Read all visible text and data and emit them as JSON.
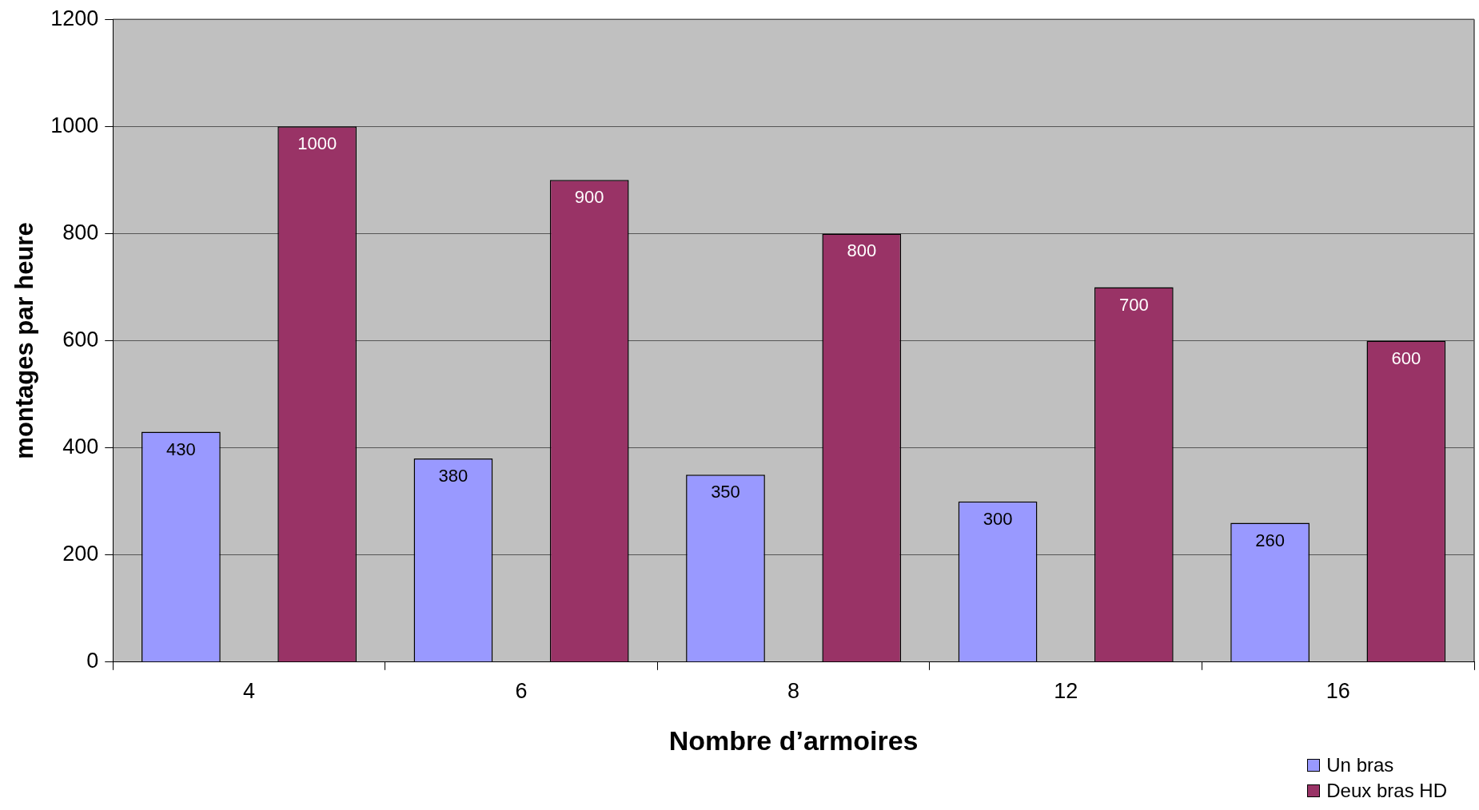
{
  "chart_data": {
    "type": "bar",
    "xlabel": "Nombre d’armoires",
    "ylabel": "montages par heure",
    "categories": [
      "4",
      "6",
      "8",
      "12",
      "16"
    ],
    "series": [
      {
        "name": "Un bras",
        "color": "#9999ff",
        "values": [
          430,
          380,
          350,
          300,
          260
        ]
      },
      {
        "name": "Deux bras HD",
        "color": "#993366",
        "values": [
          1000,
          900,
          800,
          700,
          600
        ]
      }
    ],
    "ylim": [
      0,
      1200
    ],
    "yticks": [
      0,
      200,
      400,
      600,
      800,
      1000,
      1200
    ],
    "grid": "y",
    "legend": "bottom right",
    "data_labels": true
  }
}
